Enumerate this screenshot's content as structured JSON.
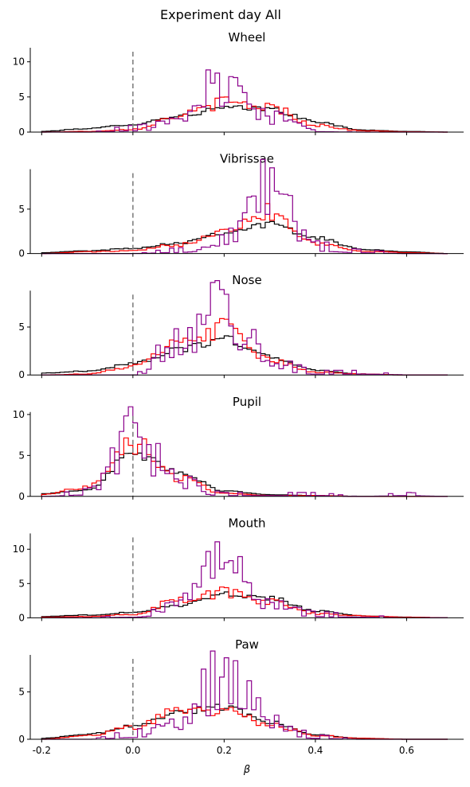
{
  "figure": {
    "title": "Experiment day All"
  },
  "colors": {
    "series_a": "#000000",
    "series_b": "#ff0000",
    "series_c": "#8b008b",
    "zero_line": "#808080"
  },
  "chart_data": [
    {
      "type": "histogram",
      "title": "Wheel",
      "xlabel": "",
      "ylabel": "",
      "xlim": [
        -0.225,
        0.725
      ],
      "ylim": [
        0,
        12
      ],
      "xticks": [
        -0.2,
        0.0,
        0.2,
        0.4,
        0.6
      ],
      "xtick_labels": [
        "-0.2",
        "0.0",
        "0.2",
        "0.4",
        "0.6"
      ],
      "yticks": [
        0,
        5,
        10
      ],
      "ytick_labels": [
        "0",
        "5",
        "10"
      ],
      "show_xticklabels": false,
      "reference_line_x": 0.0,
      "series": [
        {
          "x": [
            -0.2,
            -0.1,
            0.0,
            0.1,
            0.2,
            0.3,
            0.4,
            0.5,
            0.6,
            0.69
          ],
          "y": [
            0.1,
            0.5,
            1.1,
            2.3,
            3.4,
            3.3,
            1.5,
            0.3,
            0.1,
            0.0
          ]
        },
        {
          "x": [
            -0.2,
            -0.1,
            0.0,
            0.1,
            0.2,
            0.3,
            0.4,
            0.5,
            0.6,
            0.69
          ],
          "y": [
            0.0,
            0.1,
            0.4,
            2.3,
            4.2,
            3.6,
            1.0,
            0.2,
            0.05,
            0.0
          ]
        },
        {
          "x": [
            -0.2,
            -0.1,
            0.0,
            0.1,
            0.2,
            0.3,
            0.4,
            0.5,
            0.6,
            0.69
          ],
          "y": [
            0.0,
            0.0,
            0.6,
            1.4,
            7.5,
            2.3,
            0.2,
            0.0,
            0.0,
            0.0
          ]
        }
      ]
    },
    {
      "type": "histogram",
      "title": "Vibrissae",
      "xlabel": "",
      "ylabel": "",
      "xlim": [
        -0.225,
        0.725
      ],
      "ylim": [
        0,
        9.5
      ],
      "xticks": [
        -0.2,
        0.0,
        0.2,
        0.4,
        0.6
      ],
      "xtick_labels": [
        "-0.2",
        "0.0",
        "0.2",
        "0.4",
        "0.6"
      ],
      "yticks": [
        0,
        5
      ],
      "ytick_labels": [
        "0",
        "5"
      ],
      "show_xticklabels": false,
      "reference_line_x": 0.0,
      "series": [
        {
          "x": [
            -0.2,
            -0.1,
            0.0,
            0.1,
            0.2,
            0.3,
            0.4,
            0.5,
            0.6,
            0.69
          ],
          "y": [
            0.1,
            0.3,
            0.6,
            1.2,
            2.4,
            3.3,
            1.8,
            0.5,
            0.2,
            0.0
          ]
        },
        {
          "x": [
            -0.2,
            -0.1,
            0.0,
            0.1,
            0.2,
            0.3,
            0.4,
            0.5,
            0.6,
            0.69
          ],
          "y": [
            0.0,
            0.2,
            0.3,
            1.0,
            2.8,
            4.8,
            1.2,
            0.3,
            0.1,
            0.0
          ]
        },
        {
          "x": [
            -0.2,
            -0.1,
            0.0,
            0.1,
            0.2,
            0.3,
            0.4,
            0.5,
            0.6,
            0.69
          ],
          "y": [
            0.0,
            0.0,
            0.0,
            0.4,
            1.6,
            7.2,
            0.9,
            0.3,
            0.0,
            0.0
          ]
        }
      ]
    },
    {
      "type": "histogram",
      "title": "Nose",
      "xlabel": "",
      "ylabel": "",
      "xlim": [
        -0.225,
        0.725
      ],
      "ylim": [
        0,
        8.8
      ],
      "xticks": [
        -0.2,
        0.0,
        0.2,
        0.4,
        0.6
      ],
      "xtick_labels": [
        "-0.2",
        "0.0",
        "0.2",
        "0.4",
        "0.6"
      ],
      "yticks": [
        0,
        5
      ],
      "ytick_labels": [
        "0",
        "5"
      ],
      "show_xticklabels": false,
      "reference_line_x": 0.0,
      "series": [
        {
          "x": [
            -0.2,
            -0.1,
            0.0,
            0.1,
            0.2,
            0.3,
            0.4,
            0.5,
            0.6,
            0.69
          ],
          "y": [
            0.2,
            0.4,
            1.2,
            2.6,
            3.8,
            1.9,
            0.5,
            0.1,
            0.0,
            0.0
          ]
        },
        {
          "x": [
            -0.2,
            -0.1,
            0.0,
            0.1,
            0.2,
            0.3,
            0.4,
            0.5,
            0.6,
            0.69
          ],
          "y": [
            0.0,
            0.1,
            0.9,
            3.2,
            4.9,
            1.5,
            0.3,
            0.1,
            0.0,
            0.0
          ]
        },
        {
          "x": [
            -0.2,
            -0.1,
            0.0,
            0.1,
            0.2,
            0.3,
            0.4,
            0.5,
            0.6,
            0.69
          ],
          "y": [
            0.0,
            0.0,
            0.0,
            3.6,
            6.8,
            1.6,
            0.3,
            0.3,
            0.0,
            0.0
          ]
        }
      ]
    },
    {
      "type": "histogram",
      "title": "Pupil",
      "xlabel": "",
      "ylabel": "",
      "xlim": [
        -0.225,
        0.725
      ],
      "ylim": [
        0,
        10.3
      ],
      "xticks": [
        -0.2,
        0.0,
        0.2,
        0.4,
        0.6
      ],
      "xtick_labels": [
        "-0.2",
        "0.0",
        "0.2",
        "0.4",
        "0.6"
      ],
      "yticks": [
        0,
        5,
        10
      ],
      "ytick_labels": [
        "0",
        "5",
        "10"
      ],
      "show_xticklabels": false,
      "reference_line_x": 0.0,
      "series": [
        {
          "x": [
            -0.2,
            -0.1,
            0.0,
            0.1,
            0.2,
            0.3,
            0.4,
            0.5,
            0.6,
            0.69
          ],
          "y": [
            0.3,
            0.8,
            5.2,
            3.0,
            0.7,
            0.2,
            0.1,
            0.0,
            0.0,
            0.0
          ]
        },
        {
          "x": [
            -0.2,
            -0.1,
            0.0,
            0.1,
            0.2,
            0.3,
            0.4,
            0.5,
            0.6,
            0.69
          ],
          "y": [
            0.2,
            1.2,
            6.6,
            2.2,
            0.4,
            0.1,
            0.1,
            0.0,
            0.0,
            0.0
          ]
        },
        {
          "x": [
            -0.2,
            -0.1,
            0.0,
            0.1,
            0.2,
            0.3,
            0.4,
            0.5,
            0.6,
            0.69
          ],
          "y": [
            0.0,
            0.6,
            7.2,
            2.0,
            0.3,
            0.3,
            0.3,
            0.0,
            0.3,
            0.0
          ]
        }
      ]
    },
    {
      "type": "histogram",
      "title": "Mouth",
      "xlabel": "",
      "ylabel": "",
      "xlim": [
        -0.225,
        0.725
      ],
      "ylim": [
        0,
        12.3
      ],
      "xticks": [
        -0.2,
        0.0,
        0.2,
        0.4,
        0.6
      ],
      "xtick_labels": [
        "-0.2",
        "0.0",
        "0.2",
        "0.4",
        "0.6"
      ],
      "yticks": [
        0,
        5,
        10
      ],
      "ytick_labels": [
        "0",
        "5",
        "10"
      ],
      "show_xticklabels": false,
      "reference_line_x": 0.0,
      "series": [
        {
          "x": [
            -0.2,
            -0.1,
            0.0,
            0.1,
            0.2,
            0.3,
            0.4,
            0.5,
            0.6,
            0.69
          ],
          "y": [
            0.2,
            0.4,
            0.8,
            1.8,
            3.5,
            2.9,
            1.0,
            0.3,
            0.1,
            0.0
          ]
        },
        {
          "x": [
            -0.2,
            -0.1,
            0.0,
            0.1,
            0.2,
            0.3,
            0.4,
            0.5,
            0.6,
            0.69
          ],
          "y": [
            0.1,
            0.2,
            0.5,
            2.6,
            3.7,
            2.3,
            0.6,
            0.3,
            0.1,
            0.0
          ]
        },
        {
          "x": [
            -0.2,
            -0.1,
            0.0,
            0.1,
            0.2,
            0.3,
            0.4,
            0.5,
            0.6,
            0.69
          ],
          "y": [
            0.0,
            0.0,
            0.3,
            2.0,
            8.0,
            2.1,
            0.6,
            0.3,
            0.0,
            0.0
          ]
        }
      ]
    },
    {
      "type": "histogram",
      "title": "Paw",
      "xlabel": "β",
      "ylabel": "",
      "xlim": [
        -0.225,
        0.725
      ],
      "ylim": [
        0,
        8.9
      ],
      "xticks": [
        -0.2,
        0.0,
        0.2,
        0.4,
        0.6
      ],
      "xtick_labels": [
        "-0.2",
        "0.0",
        "0.2",
        "0.4",
        "0.6"
      ],
      "yticks": [
        0,
        5
      ],
      "ytick_labels": [
        "0",
        "5"
      ],
      "show_xticklabels": true,
      "reference_line_x": 0.0,
      "series": [
        {
          "x": [
            -0.2,
            -0.1,
            0.0,
            0.1,
            0.2,
            0.3,
            0.4,
            0.5,
            0.6,
            0.69
          ],
          "y": [
            0.1,
            0.5,
            1.4,
            2.8,
            3.4,
            1.8,
            0.5,
            0.1,
            0.0,
            0.0
          ]
        },
        {
          "x": [
            -0.2,
            -0.1,
            0.0,
            0.1,
            0.2,
            0.3,
            0.4,
            0.5,
            0.6,
            0.69
          ],
          "y": [
            0.0,
            0.4,
            1.2,
            3.1,
            3.2,
            1.6,
            0.4,
            0.1,
            0.0,
            0.0
          ]
        },
        {
          "x": [
            -0.2,
            -0.1,
            0.0,
            0.1,
            0.2,
            0.3,
            0.4,
            0.5,
            0.6,
            0.69
          ],
          "y": [
            0.0,
            0.0,
            0.6,
            2.1,
            6.8,
            2.2,
            0.3,
            0.0,
            0.0,
            0.0
          ]
        }
      ]
    }
  ]
}
